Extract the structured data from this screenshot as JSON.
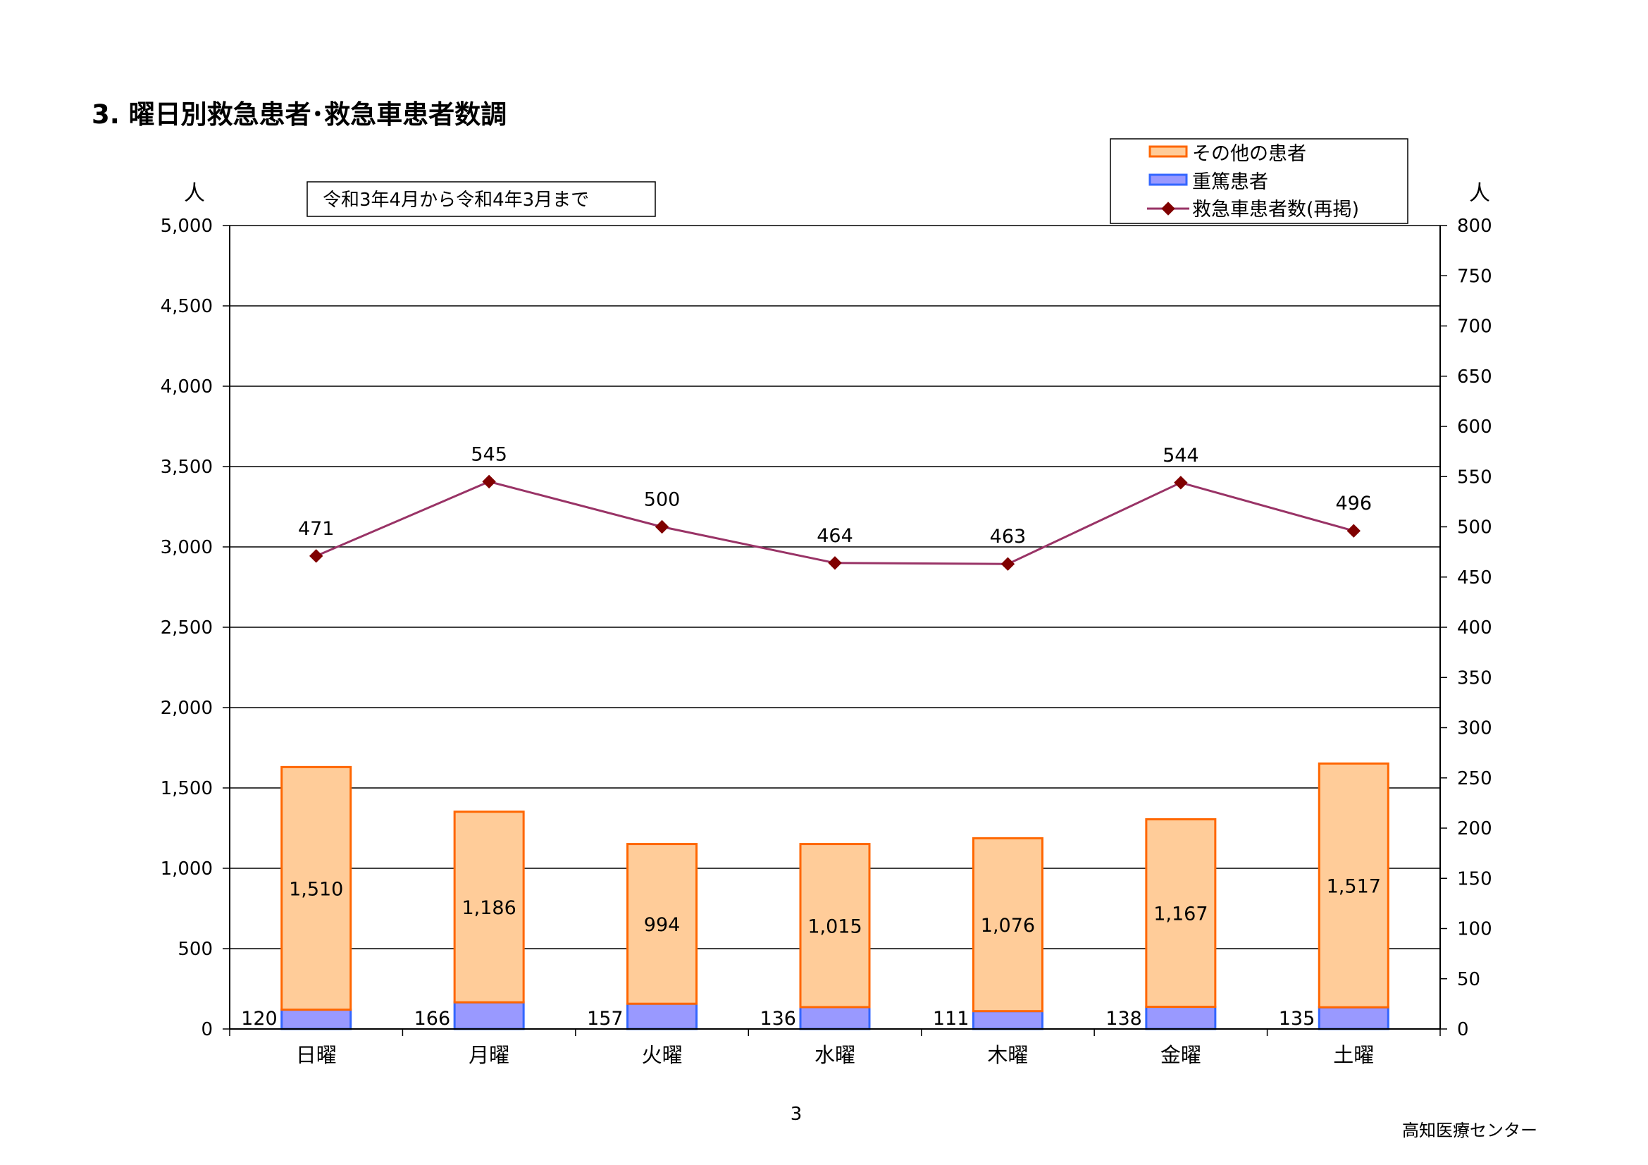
{
  "page": {
    "title": "3. 曜日別救急患者･救急車患者数調",
    "page_number": "3",
    "organization": "高知医療センター"
  },
  "colors": {
    "other_fill": "#FFCC99",
    "other_stroke": "#FF6600",
    "severe_fill": "#9999FF",
    "severe_stroke": "#3366FF",
    "line": "#993366",
    "marker": "#800000"
  },
  "chart_data": {
    "type": "bar",
    "stacked": true,
    "period_note": "令和3年4月から令和4年3月まで",
    "categories": [
      "日曜",
      "月曜",
      "火曜",
      "水曜",
      "木曜",
      "金曜",
      "土曜"
    ],
    "series": [
      {
        "name": "重篤患者",
        "axis": "left",
        "type": "bar",
        "values": [
          120,
          166,
          157,
          136,
          111,
          138,
          135
        ],
        "labels": [
          "120",
          "166",
          "157",
          "136",
          "111",
          "138",
          "135"
        ]
      },
      {
        "name": "その他の患者",
        "axis": "left",
        "type": "bar",
        "values": [
          1510,
          1186,
          994,
          1015,
          1076,
          1167,
          1517
        ],
        "labels": [
          "1,510",
          "1,186",
          "994",
          "1,015",
          "1,076",
          "1,167",
          "1,517"
        ]
      },
      {
        "name": "救急車患者数(再掲)",
        "axis": "right",
        "type": "line",
        "values": [
          471,
          545,
          500,
          464,
          463,
          544,
          496
        ],
        "labels": [
          "471",
          "545",
          "500",
          "464",
          "463",
          "544",
          "496"
        ]
      }
    ],
    "legend_order": [
      "その他の患者",
      "重篤患者",
      "救急車患者数(再掲)"
    ],
    "legend_position": "top-right",
    "y_left": {
      "unit": "人",
      "min": 0,
      "max": 5000,
      "ticks": [
        0,
        500,
        1000,
        1500,
        2000,
        2500,
        3000,
        3500,
        4000,
        4500,
        5000
      ],
      "tick_labels": [
        "0",
        "500",
        "1,000",
        "1,500",
        "2,000",
        "2,500",
        "3,000",
        "3,500",
        "4,000",
        "4,500",
        "5,000"
      ]
    },
    "y_right": {
      "unit": "人",
      "min": 0,
      "max": 800,
      "ticks": [
        0,
        50,
        100,
        150,
        200,
        250,
        300,
        350,
        400,
        450,
        500,
        550,
        600,
        650,
        700,
        750,
        800
      ],
      "tick_labels": [
        "0",
        "50",
        "100",
        "150",
        "200",
        "250",
        "300",
        "350",
        "400",
        "450",
        "500",
        "550",
        "600",
        "650",
        "700",
        "750",
        "800"
      ]
    },
    "grid": true
  }
}
